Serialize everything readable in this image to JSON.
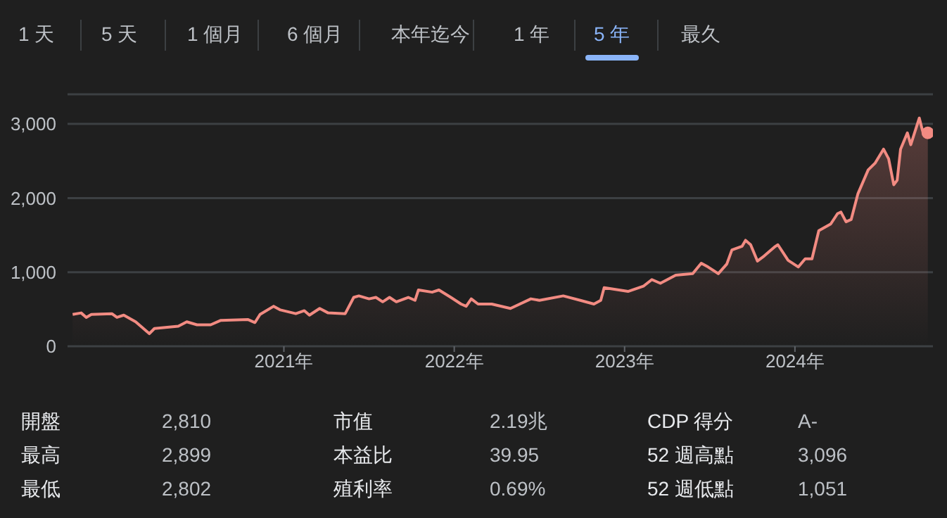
{
  "chart_data": {
    "type": "area",
    "x": [
      2019.76,
      2019.81,
      2019.84,
      2019.87,
      2019.99,
      2020.02,
      2020.06,
      2020.13,
      2020.21,
      2020.24,
      2020.38,
      2020.43,
      2020.49,
      2020.57,
      2020.63,
      2020.79,
      2020.83,
      2020.86,
      2020.94,
      2020.98,
      2021.07,
      2021.12,
      2021.15,
      2021.21,
      2021.26,
      2021.36,
      2021.41,
      2021.44,
      2021.5,
      2021.54,
      2021.58,
      2021.62,
      2021.66,
      2021.73,
      2021.77,
      2021.79,
      2021.87,
      2021.91,
      2021.98,
      2022.04,
      2022.07,
      2022.1,
      2022.14,
      2022.22,
      2022.33,
      2022.45,
      2022.5,
      2022.64,
      2022.74,
      2022.82,
      2022.86,
      2022.88,
      2023.02,
      2023.11,
      2023.16,
      2023.21,
      2023.3,
      2023.4,
      2023.45,
      2023.49,
      2023.55,
      2023.6,
      2023.63,
      2023.69,
      2023.71,
      2023.74,
      2023.78,
      2023.82,
      2023.88,
      2023.9,
      2023.96,
      2024.02,
      2024.06,
      2024.1,
      2024.14,
      2024.21,
      2024.25,
      2024.27,
      2024.3,
      2024.33,
      2024.37,
      2024.43,
      2024.47,
      2024.52,
      2024.55,
      2024.58,
      2024.6,
      2024.62,
      2024.66,
      2024.68,
      2024.73,
      2024.75,
      2024.78
    ],
    "series": [
      {
        "color": "#f28b82",
        "values": [
          430,
          450,
          390,
          430,
          440,
          390,
          420,
          330,
          170,
          240,
          270,
          330,
          290,
          290,
          350,
          360,
          320,
          430,
          540,
          490,
          440,
          480,
          420,
          510,
          450,
          440,
          660,
          680,
          640,
          660,
          600,
          660,
          600,
          660,
          620,
          760,
          730,
          760,
          660,
          570,
          540,
          640,
          570,
          570,
          510,
          640,
          620,
          680,
          620,
          570,
          620,
          790,
          740,
          810,
          900,
          850,
          960,
          980,
          1120,
          1070,
          980,
          1110,
          1300,
          1350,
          1430,
          1370,
          1150,
          1220,
          1340,
          1370,
          1160,
          1070,
          1180,
          1180,
          1560,
          1650,
          1790,
          1810,
          1680,
          1710,
          2060,
          2380,
          2470,
          2660,
          2530,
          2180,
          2240,
          2660,
          2880,
          2720,
          3080,
          2900,
          2880
        ]
      }
    ],
    "xlim": [
      2019.73,
      2024.81
    ],
    "xticks": [
      {
        "value": 2021,
        "label": "2021年"
      },
      {
        "value": 2022,
        "label": "2022年"
      },
      {
        "value": 2023,
        "label": "2023年"
      },
      {
        "value": 2024,
        "label": "2024年"
      }
    ],
    "ylim": [
      0,
      3400
    ],
    "yticks": [
      {
        "value": 0,
        "label": "0"
      },
      {
        "value": 1000,
        "label": "1,000"
      },
      {
        "value": 2000,
        "label": "2,000"
      },
      {
        "value": 3000,
        "label": "3,000"
      }
    ],
    "grid": "y",
    "annotations": [
      "1 天",
      "5 天",
      "1 個月",
      "6 個月",
      "本年迄今",
      "1 年",
      "5 年",
      "最久",
      "開盤",
      "2,810",
      "市值",
      "2.19兆",
      "CDP 得分",
      "A-",
      "最高",
      "2,899",
      "本益比",
      "39.95",
      "52 週高點",
      "3,096",
      "最低",
      "2,802",
      "殖利率",
      "0.69%",
      "52 週低點",
      "1,051"
    ]
  }
}
